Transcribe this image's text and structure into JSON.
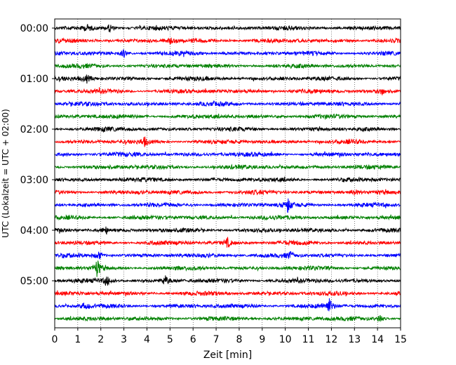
{
  "chart_data": {
    "type": "line",
    "title": "",
    "xlabel": "Zeit  [min]",
    "ylabel": "UTC (Lokalzeit = UTC + 02:00)",
    "xlim": [
      0,
      15
    ],
    "x_ticks": [
      0,
      1,
      2,
      3,
      4,
      5,
      6,
      7,
      8,
      9,
      10,
      11,
      12,
      13,
      14,
      15
    ],
    "x_tick_labels": [
      "0",
      "1",
      "2",
      "3",
      "4",
      "5",
      "6",
      "7",
      "8",
      "9",
      "10",
      "11",
      "12",
      "13",
      "14",
      "15"
    ],
    "y_tick_labels": [
      "00:00",
      "01:00",
      "02:00",
      "03:00",
      "04:00",
      "05:00"
    ],
    "y_tick_rows": [
      0,
      4,
      8,
      12,
      16,
      20
    ],
    "grid": "vertical dotted at every minute",
    "trace_count": 24,
    "minutes_per_trace": 15,
    "trace_colors": [
      "#000000",
      "#ff0000",
      "#0000ff",
      "#008000"
    ],
    "events": [
      {
        "row": 0,
        "minute": 2.4,
        "amp": 0.9
      },
      {
        "row": 0,
        "minute": 1.45,
        "amp": 0.6
      },
      {
        "row": 1,
        "minute": 5.0,
        "amp": 0.5
      },
      {
        "row": 2,
        "minute": 3.0,
        "amp": 0.7
      },
      {
        "row": 4,
        "minute": 1.4,
        "amp": 0.7
      },
      {
        "row": 5,
        "minute": 14.2,
        "amp": 0.6
      },
      {
        "row": 9,
        "minute": 3.9,
        "amp": 0.8
      },
      {
        "row": 13,
        "minute": 13.0,
        "amp": 0.7
      },
      {
        "row": 14,
        "minute": 10.1,
        "amp": 1.6
      },
      {
        "row": 16,
        "minute": 2.2,
        "amp": 0.8
      },
      {
        "row": 17,
        "minute": 7.5,
        "amp": 0.9
      },
      {
        "row": 18,
        "minute": 1.9,
        "amp": 0.9
      },
      {
        "row": 18,
        "minute": 10.2,
        "amp": 0.7
      },
      {
        "row": 19,
        "minute": 1.85,
        "amp": 1.8
      },
      {
        "row": 20,
        "minute": 2.3,
        "amp": 0.9
      },
      {
        "row": 20,
        "minute": 4.8,
        "amp": 0.8
      },
      {
        "row": 22,
        "minute": 1.3,
        "amp": 0.8
      },
      {
        "row": 22,
        "minute": 11.9,
        "amp": 1.5
      },
      {
        "row": 23,
        "minute": 14.1,
        "amp": 0.8
      }
    ]
  }
}
